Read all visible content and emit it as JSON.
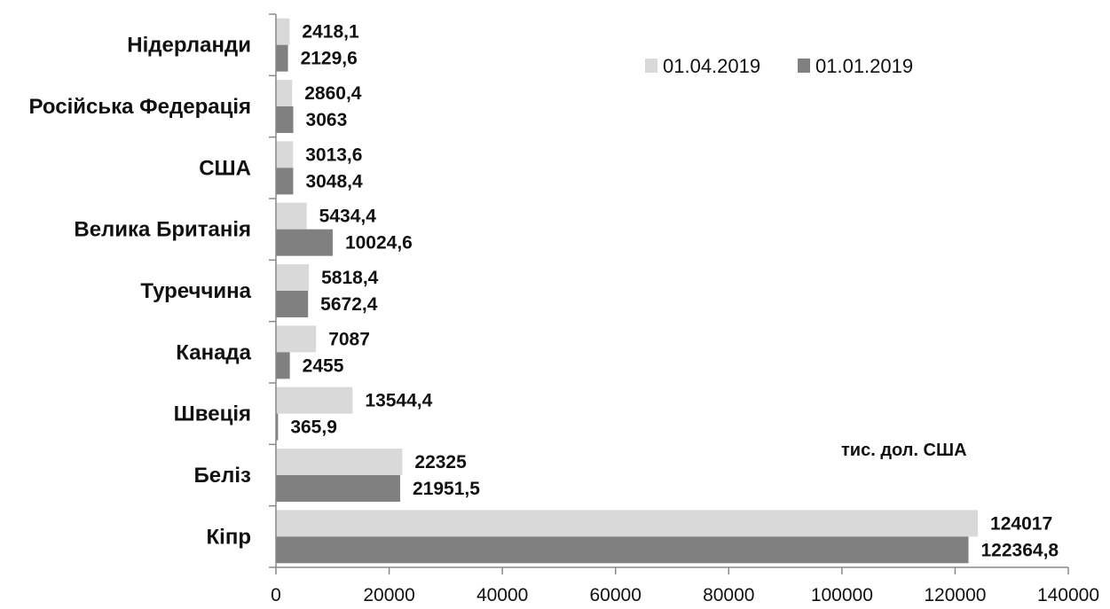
{
  "chart_data": {
    "type": "bar",
    "orientation": "horizontal",
    "unit": "тис. дол. США",
    "categories": [
      "Нідерланди",
      "Російська Федерація",
      "США",
      "Велика Британія",
      "Туреччина",
      "Канада",
      "Швеція",
      "Беліз",
      "Кіпр"
    ],
    "series": [
      {
        "name": "01.04.2019",
        "color": "#d9d9d9",
        "values": [
          2418.1,
          2860.4,
          3013.6,
          5434.4,
          5818.4,
          7087,
          13544.4,
          22325,
          124017
        ],
        "labels": [
          "2418,1",
          "2860,4",
          "3013,6",
          "5434,4",
          "5818,4",
          "7087",
          "13544,4",
          "22325",
          "124017"
        ]
      },
      {
        "name": "01.01.2019",
        "color": "#808080",
        "values": [
          2129.6,
          3063,
          3048.4,
          10024.6,
          5672.4,
          2455,
          365.9,
          21951.5,
          122364.8
        ],
        "labels": [
          "2129,6",
          "3063",
          "3048,4",
          "10024,6",
          "5672,4",
          "2455",
          "365,9",
          "21951,5",
          "122364,8"
        ]
      }
    ],
    "xlim": [
      0,
      140000
    ],
    "xticks": [
      0,
      20000,
      40000,
      60000,
      80000,
      100000,
      120000,
      140000
    ],
    "xtick_labels": [
      "0",
      "20000",
      "40000",
      "60000",
      "80000",
      "100000",
      "120000",
      "140000"
    ],
    "grid": false,
    "legend_position": "top-right"
  }
}
